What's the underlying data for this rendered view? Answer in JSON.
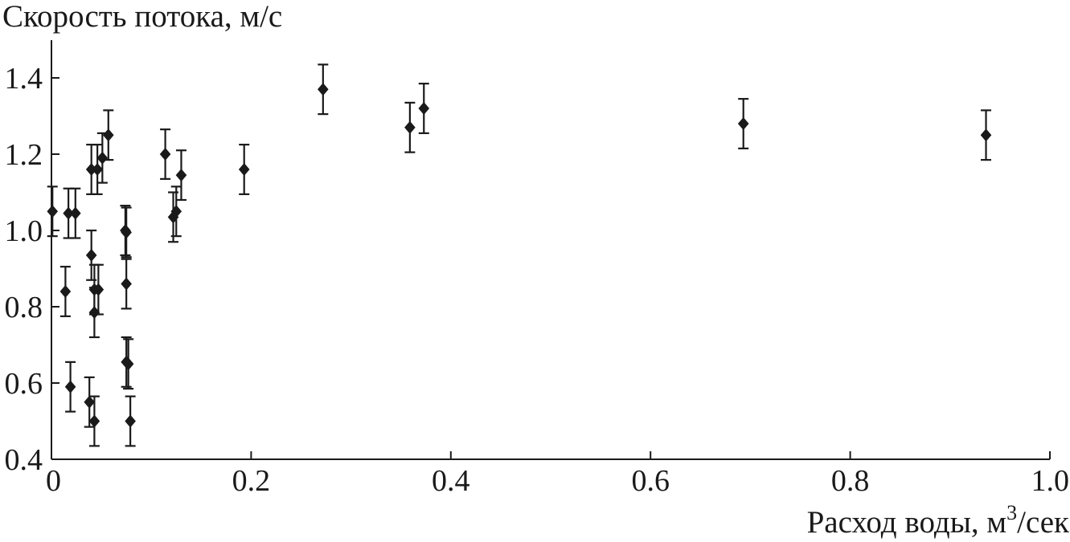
{
  "chart_data": {
    "type": "scatter",
    "title": "",
    "xlabel": "Расход воды, м",
    "xlabel_sup": "3",
    "xlabel_suffix": "/сек",
    "ylabel": "Скорость потока, м/с",
    "xlim": [
      0,
      1.0
    ],
    "ylim": [
      0.4,
      1.5
    ],
    "xticks": [
      0,
      0.2,
      0.4,
      0.6,
      0.8,
      1.0
    ],
    "xtick_labels": [
      "0",
      "0.2",
      "0.4",
      "0.6",
      "0.8",
      "1.0"
    ],
    "yticks": [
      0.4,
      0.6,
      0.8,
      1.0,
      1.2,
      1.4
    ],
    "ytick_labels": [
      "0.4",
      "0.6",
      "0.8",
      "1.0",
      "1.2",
      "1.4"
    ],
    "grid": false,
    "marker": "diamond",
    "color": "#1a1a1a",
    "error": 0.065,
    "points": [
      {
        "x": 0.001,
        "y": 1.05
      },
      {
        "x": 0.014,
        "y": 0.84
      },
      {
        "x": 0.017,
        "y": 1.045
      },
      {
        "x": 0.019,
        "y": 0.59
      },
      {
        "x": 0.024,
        "y": 1.045
      },
      {
        "x": 0.038,
        "y": 0.55
      },
      {
        "x": 0.04,
        "y": 1.16
      },
      {
        "x": 0.04,
        "y": 0.935
      },
      {
        "x": 0.043,
        "y": 0.845
      },
      {
        "x": 0.043,
        "y": 0.785
      },
      {
        "x": 0.043,
        "y": 0.5
      },
      {
        "x": 0.046,
        "y": 1.16
      },
      {
        "x": 0.047,
        "y": 0.845
      },
      {
        "x": 0.051,
        "y": 1.19
      },
      {
        "x": 0.057,
        "y": 1.25
      },
      {
        "x": 0.074,
        "y": 1.0
      },
      {
        "x": 0.075,
        "y": 0.995
      },
      {
        "x": 0.075,
        "y": 0.86
      },
      {
        "x": 0.075,
        "y": 0.655
      },
      {
        "x": 0.077,
        "y": 0.65
      },
      {
        "x": 0.079,
        "y": 0.5
      },
      {
        "x": 0.114,
        "y": 1.2
      },
      {
        "x": 0.122,
        "y": 1.035
      },
      {
        "x": 0.125,
        "y": 1.05
      },
      {
        "x": 0.13,
        "y": 1.145
      },
      {
        "x": 0.193,
        "y": 1.16
      },
      {
        "x": 0.272,
        "y": 1.37
      },
      {
        "x": 0.359,
        "y": 1.27
      },
      {
        "x": 0.373,
        "y": 1.32
      },
      {
        "x": 0.693,
        "y": 1.28
      },
      {
        "x": 0.936,
        "y": 1.25
      }
    ]
  }
}
